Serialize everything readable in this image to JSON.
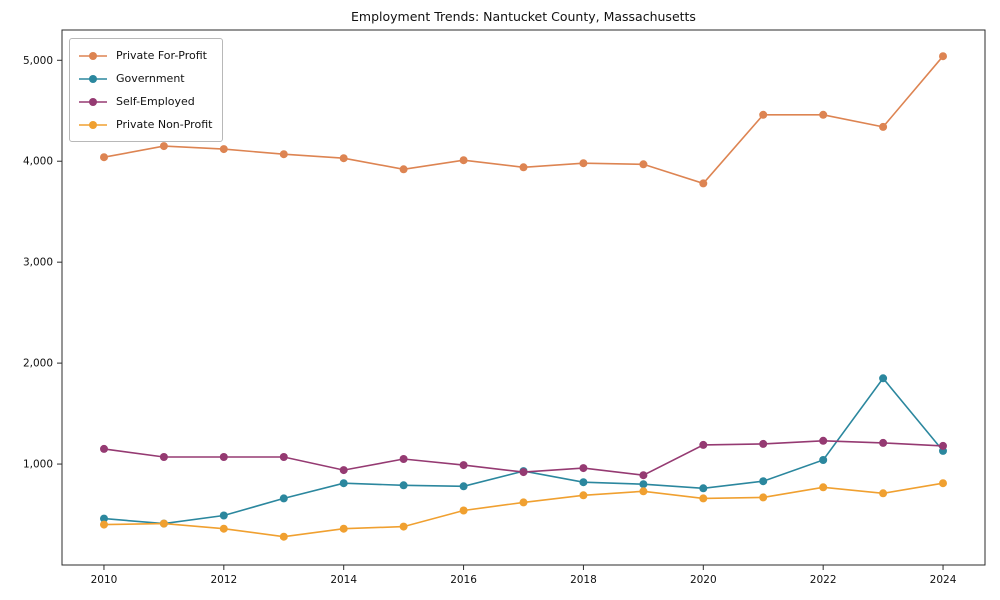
{
  "title": "Employment Trends: Nantucket County, Massachusetts",
  "chart_data": {
    "type": "line",
    "title": "Employment Trends: Nantucket County, Massachusetts",
    "xlabel": "",
    "ylabel": "",
    "grid": false,
    "marker": "o",
    "legend_position": "upper left",
    "x": [
      2010,
      2011,
      2012,
      2013,
      2014,
      2015,
      2016,
      2017,
      2018,
      2019,
      2020,
      2021,
      2022,
      2023,
      2024
    ],
    "xticks": [
      2010,
      2012,
      2014,
      2016,
      2018,
      2020,
      2022,
      2024
    ],
    "ytick_values": [
      1000,
      2000,
      3000,
      4000,
      5000
    ],
    "ytick_labels": [
      "1,000",
      "2,000",
      "3,000",
      "4,000",
      "5,000"
    ],
    "xlim": [
      2009.3,
      2024.7
    ],
    "ylim": [
      0,
      5300
    ],
    "series": [
      {
        "name": "Private For-Profit",
        "color": "#dd8452",
        "values": [
          4040,
          4150,
          4120,
          4070,
          4030,
          3920,
          4010,
          3940,
          3980,
          3970,
          3780,
          4460,
          4460,
          4340,
          5040
        ]
      },
      {
        "name": "Government",
        "color": "#2b879e",
        "values": [
          460,
          410,
          490,
          660,
          810,
          790,
          780,
          930,
          820,
          800,
          760,
          830,
          1040,
          1850,
          1130
        ]
      },
      {
        "name": "Self-Employed",
        "color": "#953a72",
        "values": [
          1150,
          1070,
          1070,
          1070,
          940,
          1050,
          990,
          920,
          960,
          890,
          1190,
          1200,
          1230,
          1210,
          1180
        ]
      },
      {
        "name": "Private Non-Profit",
        "color": "#f0a030",
        "values": [
          400,
          410,
          360,
          280,
          360,
          380,
          540,
          620,
          690,
          730,
          660,
          670,
          770,
          710,
          810
        ]
      }
    ]
  }
}
